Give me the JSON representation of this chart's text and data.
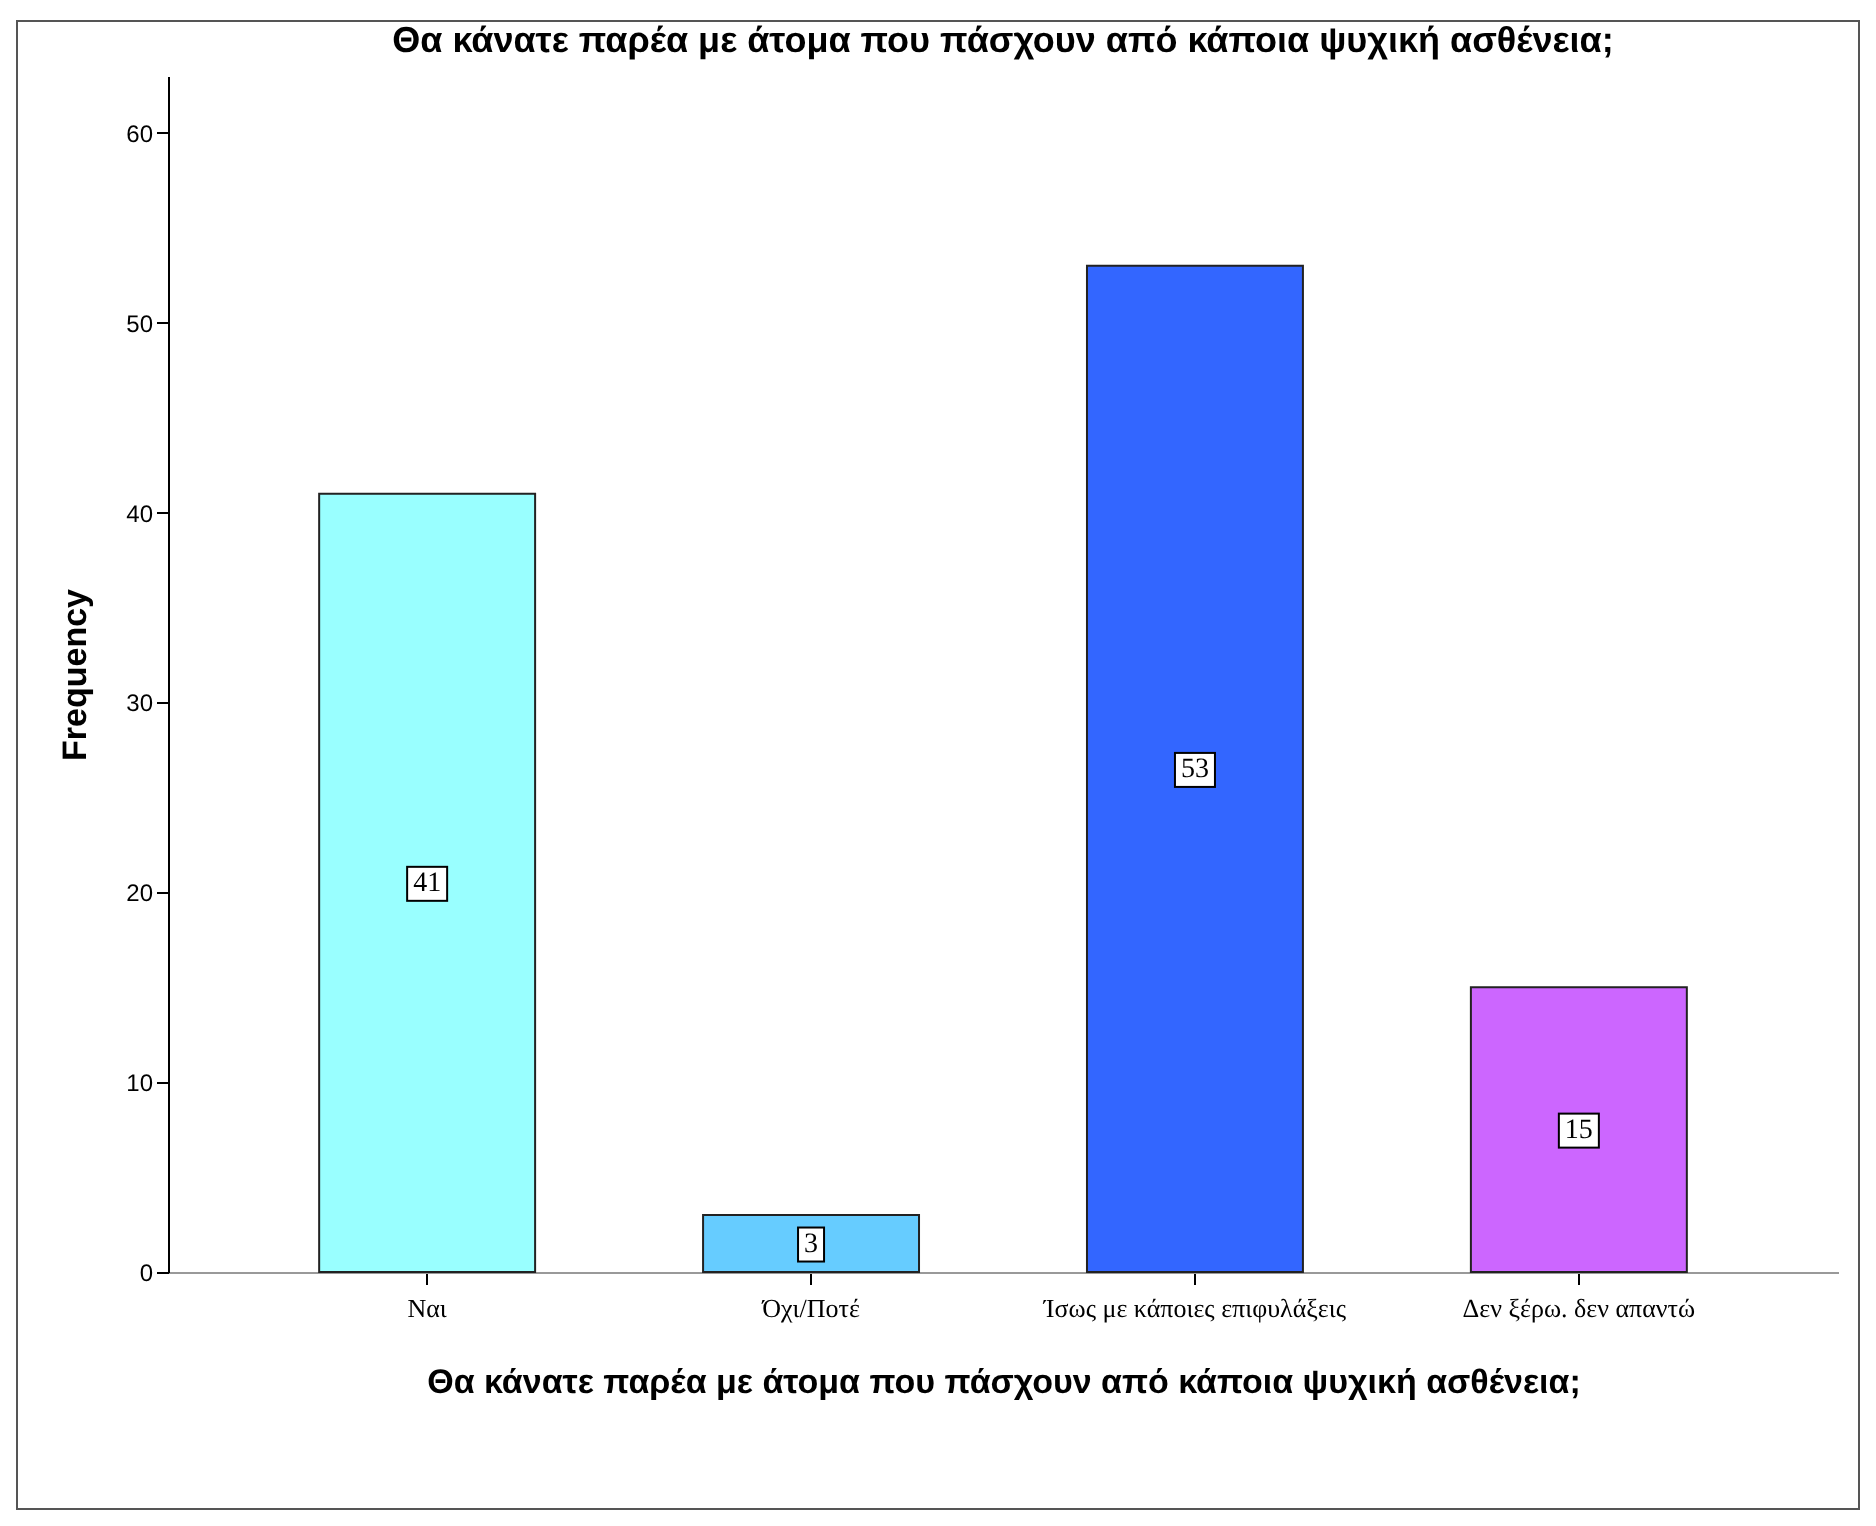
{
  "chart_data": {
    "type": "bar",
    "title": "Θα κάνατε παρέα με άτομα που πάσχουν από κάποια ψυχική ασθένεια;",
    "xlabel": "Θα κάνατε παρέα με άτομα που πάσχουν από κάποια ψυχική ασθένεια;",
    "ylabel": "Frequency",
    "categories": [
      "Ναι",
      "Όχι/Ποτέ",
      "Ίσως με κάποιες επιφυλάξεις",
      "Δεν ξέρω. δεν απαντώ"
    ],
    "values": [
      41,
      3,
      53,
      15
    ],
    "colors": [
      "#99ffff",
      "#66ccff",
      "#3366ff",
      "#cc66ff"
    ],
    "ylim": [
      0,
      63
    ],
    "yticks": [
      0,
      10,
      20,
      30,
      40,
      50,
      60
    ],
    "grid": false,
    "data_labels": true
  }
}
